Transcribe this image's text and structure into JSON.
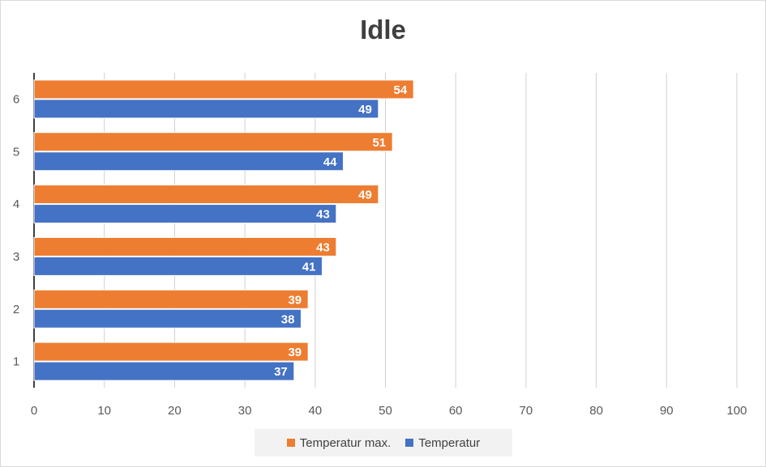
{
  "chart_data": {
    "type": "bar",
    "orientation": "horizontal",
    "title": "Idle",
    "categories": [
      "1",
      "2",
      "3",
      "4",
      "5",
      "6"
    ],
    "series": [
      {
        "name": "Temperatur max.",
        "color": "#ed7d31",
        "values": [
          39,
          39,
          43,
          49,
          51,
          54
        ]
      },
      {
        "name": "Temperatur",
        "color": "#4472c4",
        "values": [
          37,
          38,
          41,
          43,
          44,
          49
        ]
      }
    ],
    "xlim": [
      0,
      100
    ],
    "xticks": [
      0,
      10,
      20,
      30,
      40,
      50,
      60,
      70,
      80,
      90,
      100
    ],
    "grid": true,
    "data_labels": true,
    "legend_position": "bottom"
  }
}
